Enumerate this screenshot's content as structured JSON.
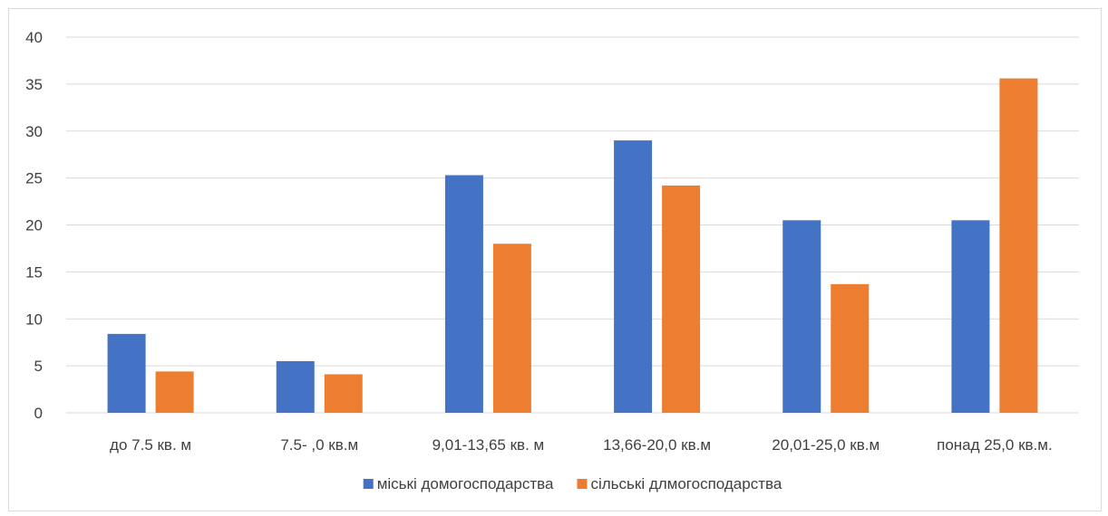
{
  "chart_data": {
    "type": "bar",
    "title": "",
    "xlabel": "",
    "ylabel": "",
    "categories": [
      "до 7.5 кв. м",
      "7.5- ,0 кв.м",
      "9,01-13,65 кв. м",
      "13,66-20,0 кв.м",
      "20,01-25,0 кв.м",
      "понад 25,0 кв.м."
    ],
    "series": [
      {
        "name": "міські домогосподарства",
        "values": [
          8.4,
          5.5,
          25.3,
          29.0,
          20.5,
          20.5
        ],
        "color": "#4472C4"
      },
      {
        "name": "сільські длмогосподарства",
        "values": [
          4.4,
          4.1,
          18.0,
          24.2,
          13.7,
          35.6
        ],
        "color": "#ED7D31"
      }
    ],
    "ylim": [
      0,
      40
    ],
    "yticks": [
      0,
      5,
      10,
      15,
      20,
      25,
      30,
      35,
      40
    ],
    "grid": true,
    "legend_position": "bottom"
  }
}
